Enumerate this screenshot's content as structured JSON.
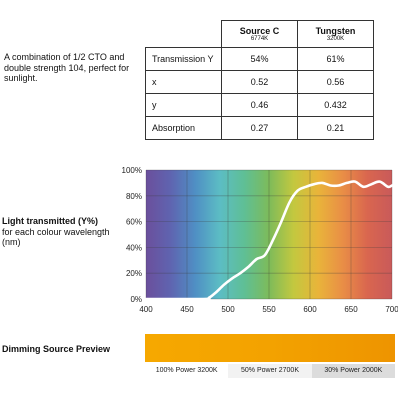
{
  "description": "A combination of 1/2 CTO and double strength 104, perfect for sunlight.",
  "table": {
    "columns": [
      {
        "name": "Source C",
        "sub": "6774K"
      },
      {
        "name": "Tungsten",
        "sub": "3200K"
      }
    ],
    "rows": [
      {
        "label": "Transmission Y",
        "values": [
          "54%",
          "61%"
        ]
      },
      {
        "label": "x",
        "values": [
          "0.52",
          "0.56"
        ]
      },
      {
        "label": "y",
        "values": [
          "0.46",
          "0.432"
        ]
      },
      {
        "label": "Absorption",
        "values": [
          "0.27",
          "0.21"
        ]
      }
    ]
  },
  "chart_label": {
    "title": "Light transmitted (Y%)",
    "subtitle": "for each colour wavelength (nm)"
  },
  "chart_data": {
    "type": "line",
    "xlim": [
      400,
      700
    ],
    "ylim": [
      0,
      100
    ],
    "x_ticks": [
      400,
      450,
      500,
      550,
      600,
      650,
      700
    ],
    "y_ticks": [
      "0%",
      "20%",
      "40%",
      "60%",
      "80%",
      "100%"
    ],
    "grid": true,
    "series": [
      {
        "x": [
          400,
          470,
          477,
          485,
          495,
          505,
          515,
          525,
          535,
          545,
          555,
          565,
          575,
          585,
          595,
          605,
          615,
          625,
          635,
          645,
          655,
          665,
          675,
          685,
          695,
          700
        ],
        "y": [
          0,
          0,
          1,
          5,
          11,
          16,
          20,
          25,
          31,
          34,
          46,
          60,
          75,
          84,
          87,
          89,
          90,
          88,
          88,
          90,
          91,
          87,
          89,
          91,
          87,
          88
        ]
      }
    ],
    "background": "visible-spectrum gradient",
    "line_color": "#ffffff"
  },
  "preview": {
    "title": "Dimming Source Preview",
    "items": [
      {
        "label": "100% Power 3200K",
        "color": "#f6a800"
      },
      {
        "label": "50% Power 2700K",
        "color": "#f3a200"
      },
      {
        "label": "30% Power 2000K",
        "color": "#ee9400"
      }
    ],
    "label_backgrounds": [
      "#ffffff",
      "#f2f2f2",
      "#dcdcdc"
    ]
  }
}
